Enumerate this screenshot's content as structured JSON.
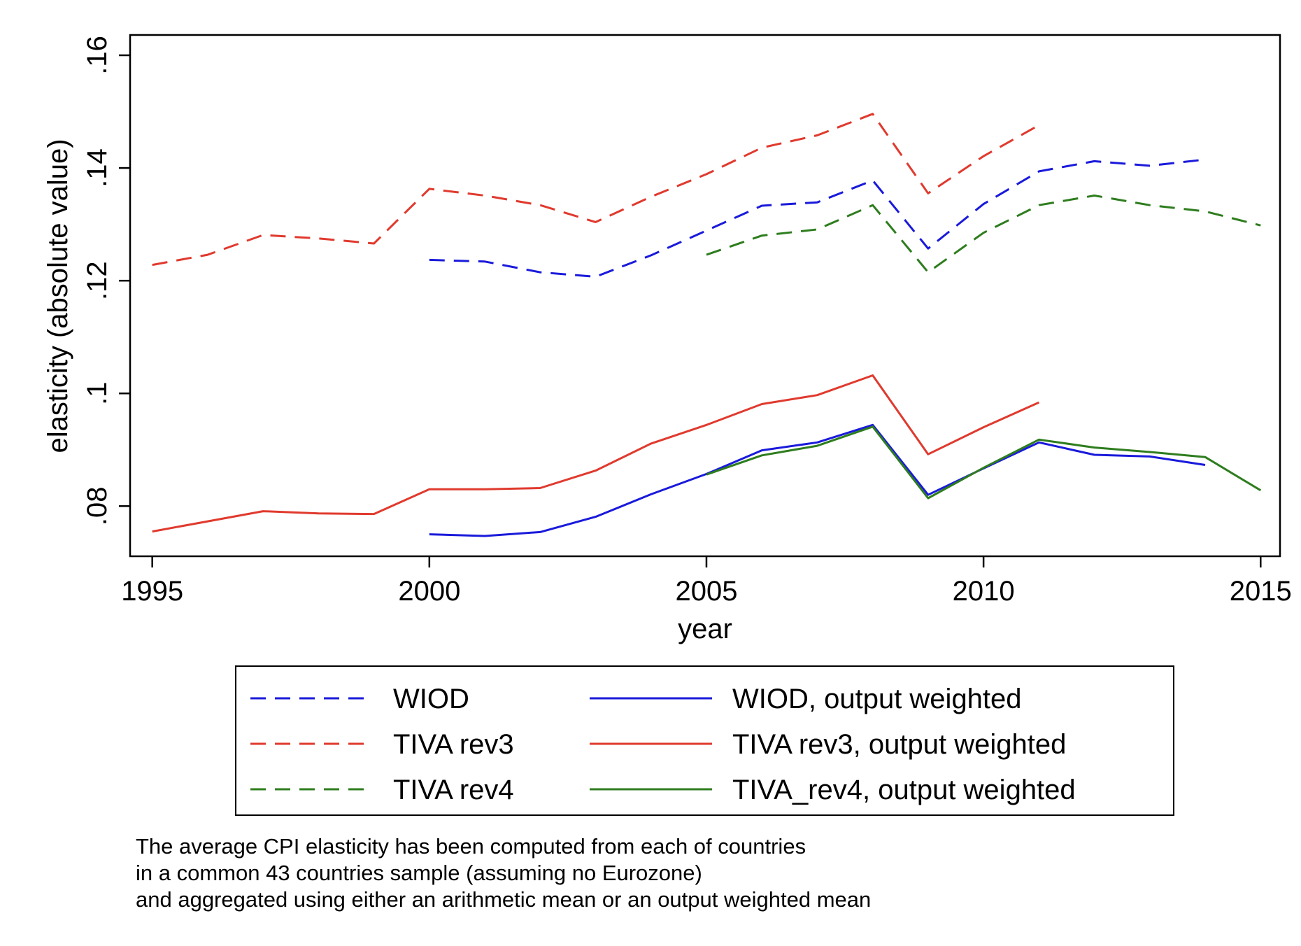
{
  "chart_data": {
    "type": "line",
    "xlabel": "year",
    "ylabel": "elasticity (absolute value)",
    "xlim": [
      1994.6,
      2015.35
    ],
    "ylim": [
      0.0711,
      0.1636
    ],
    "x_ticks": [
      1995,
      2000,
      2005,
      2010,
      2015
    ],
    "x_tick_labels": [
      "1995",
      "2000",
      "2005",
      "2010",
      "2015"
    ],
    "y_ticks": [
      0.08,
      0.1,
      0.12,
      0.14,
      0.16
    ],
    "y_tick_labels": [
      ".08",
      ".1",
      ".12",
      ".14",
      ".16"
    ],
    "grid": false,
    "legend_position": "bottom",
    "series": [
      {
        "name": "WIOD",
        "color": "#1a1adb",
        "style": "dashed",
        "x": [
          2000,
          2001,
          2002,
          2003,
          2004,
          2005,
          2006,
          2007,
          2008,
          2009,
          2010,
          2011,
          2012,
          2013,
          2014
        ],
        "y": [
          0.1237,
          0.1234,
          0.1215,
          0.1207,
          0.1245,
          0.1289,
          0.1333,
          0.1339,
          0.1378,
          0.1257,
          0.1336,
          0.1394,
          0.1412,
          0.1404,
          0.1415
        ]
      },
      {
        "name": "TIVA rev3",
        "color": "#e03a2e",
        "style": "dashed",
        "x": [
          1995,
          1996,
          1997,
          1998,
          1999,
          2000,
          2001,
          2002,
          2003,
          2004,
          2005,
          2006,
          2007,
          2008,
          2009,
          2010,
          2011
        ],
        "y": [
          0.1228,
          0.1246,
          0.1281,
          0.1275,
          0.1266,
          0.1363,
          0.1351,
          0.1334,
          0.1304,
          0.1349,
          0.1389,
          0.1436,
          0.1458,
          0.1496,
          0.1355,
          0.1421,
          0.1476
        ]
      },
      {
        "name": "TIVA rev4",
        "color": "#2e7d1e",
        "style": "dashed",
        "x": [
          2005,
          2006,
          2007,
          2008,
          2009,
          2010,
          2011,
          2012,
          2013,
          2014,
          2015
        ],
        "y": [
          0.1246,
          0.128,
          0.1291,
          0.1334,
          0.1215,
          0.1285,
          0.1334,
          0.1351,
          0.1334,
          0.1323,
          0.1298
        ]
      },
      {
        "name": "WIOD, output weighted",
        "color": "#1a1adb",
        "style": "solid",
        "x": [
          2000,
          2001,
          2002,
          2003,
          2004,
          2005,
          2006,
          2007,
          2008,
          2009,
          2010,
          2011,
          2012,
          2013,
          2014
        ],
        "y": [
          0.075,
          0.0747,
          0.0754,
          0.0781,
          0.0821,
          0.0857,
          0.0899,
          0.0913,
          0.0944,
          0.082,
          0.0867,
          0.0913,
          0.0891,
          0.0888,
          0.0873
        ]
      },
      {
        "name": "TIVA rev3, output weighted",
        "color": "#e03a2e",
        "style": "solid",
        "x": [
          1995,
          1996,
          1997,
          1998,
          1999,
          2000,
          2001,
          2002,
          2003,
          2004,
          2005,
          2006,
          2007,
          2008,
          2009,
          2010,
          2011
        ],
        "y": [
          0.0755,
          0.0773,
          0.0791,
          0.0787,
          0.0786,
          0.083,
          0.083,
          0.0832,
          0.0863,
          0.0911,
          0.0944,
          0.0981,
          0.0997,
          0.1032,
          0.0892,
          0.094,
          0.0984
        ]
      },
      {
        "name": "TIVA_rev4, output weighted",
        "color": "#2e7d1e",
        "style": "solid",
        "x": [
          2005,
          2006,
          2007,
          2008,
          2009,
          2010,
          2011,
          2012,
          2013,
          2014,
          2015
        ],
        "y": [
          0.0856,
          0.089,
          0.0907,
          0.0941,
          0.0814,
          0.0868,
          0.0918,
          0.0904,
          0.0896,
          0.0887,
          0.0828
        ]
      }
    ],
    "note": [
      "The average CPI elasticity has been computed from each of countries",
      "in a common 43 countries sample (assuming no Eurozone)",
      "and aggregated using either an arithmetic mean or an output weighted mean"
    ]
  }
}
